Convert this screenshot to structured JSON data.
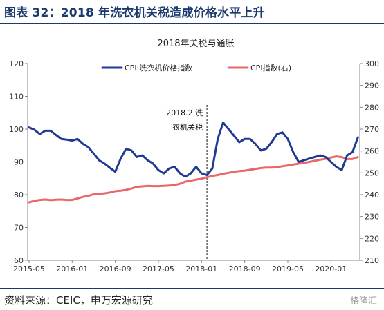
{
  "figure_title": "图表 32：2018 年洗衣机关税造成价格水平上升",
  "source_text": "资料来源：CEIC，申万宏源研究",
  "watermark_text": "格隆汇",
  "colors": {
    "series_1": "#1f3a93",
    "series_2": "#e8686a",
    "text": "#222222",
    "accent": "#1a3a6e"
  },
  "chart_data": {
    "type": "line",
    "title": "2018年关税与通胀",
    "x_tick_labels": [
      "2015-05",
      "2016-01",
      "2016-09",
      "2017-05",
      "2018-01",
      "2018-09",
      "2019-05",
      "2020-01"
    ],
    "ylim_left": [
      60,
      120
    ],
    "yticks_left": [
      60,
      70,
      80,
      90,
      100,
      110,
      120
    ],
    "ylim_right": [
      210,
      300
    ],
    "yticks_right": [
      210,
      220,
      230,
      240,
      250,
      260,
      270,
      280,
      290,
      300
    ],
    "grid": false,
    "legend_position": "top",
    "annotation": {
      "lines": [
        "2018.2 洗",
        "衣机关税"
      ],
      "x": "2018-02"
    },
    "series": [
      {
        "name": "CPI:洗衣机价格指数",
        "axis": "left",
        "color": "#1f3a93",
        "x": [
          "2015-05",
          "2015-06",
          "2015-07",
          "2015-08",
          "2015-09",
          "2015-10",
          "2015-11",
          "2015-12",
          "2016-01",
          "2016-02",
          "2016-03",
          "2016-04",
          "2016-05",
          "2016-06",
          "2016-07",
          "2016-08",
          "2016-09",
          "2016-10",
          "2016-11",
          "2016-12",
          "2017-01",
          "2017-02",
          "2017-03",
          "2017-04",
          "2017-05",
          "2017-06",
          "2017-07",
          "2017-08",
          "2017-09",
          "2017-10",
          "2017-11",
          "2017-12",
          "2018-01",
          "2018-02",
          "2018-03",
          "2018-04",
          "2018-05",
          "2018-06",
          "2018-07",
          "2018-08",
          "2018-09",
          "2018-10",
          "2018-11",
          "2018-12",
          "2019-01",
          "2019-02",
          "2019-03",
          "2019-04",
          "2019-05",
          "2019-06",
          "2019-07",
          "2019-08",
          "2019-09",
          "2019-10",
          "2019-11",
          "2019-12",
          "2020-01",
          "2020-02",
          "2020-03",
          "2020-04",
          "2020-05",
          "2020-06"
        ],
        "values": [
          100.5,
          99.8,
          98.5,
          99.5,
          99.5,
          98.2,
          97.0,
          96.8,
          96.5,
          97.0,
          95.5,
          94.5,
          92.5,
          90.5,
          89.5,
          88.2,
          87.0,
          91.0,
          94.0,
          93.5,
          91.5,
          92.0,
          90.5,
          89.5,
          87.5,
          86.5,
          88.0,
          88.5,
          86.5,
          85.5,
          86.5,
          88.5,
          86.5,
          86.0,
          88.0,
          97.0,
          102.0,
          100.0,
          98.0,
          96.0,
          97.0,
          97.0,
          95.5,
          93.5,
          94.0,
          96.0,
          98.5,
          99.0,
          97.0,
          93.0,
          90.0,
          90.5,
          91.0,
          91.5,
          92.0,
          91.5,
          90.0,
          88.5,
          87.5,
          92.0,
          93.0,
          97.5
        ]
      },
      {
        "name": "CPI指数(右)",
        "axis": "right",
        "color": "#e8686a",
        "x": [
          "2015-05",
          "2015-06",
          "2015-07",
          "2015-08",
          "2015-09",
          "2015-10",
          "2015-11",
          "2015-12",
          "2016-01",
          "2016-02",
          "2016-03",
          "2016-04",
          "2016-05",
          "2016-06",
          "2016-07",
          "2016-08",
          "2016-09",
          "2016-10",
          "2016-11",
          "2016-12",
          "2017-01",
          "2017-02",
          "2017-03",
          "2017-04",
          "2017-05",
          "2017-06",
          "2017-07",
          "2017-08",
          "2017-09",
          "2017-10",
          "2017-11",
          "2017-12",
          "2018-01",
          "2018-02",
          "2018-03",
          "2018-04",
          "2018-05",
          "2018-06",
          "2018-07",
          "2018-08",
          "2018-09",
          "2018-10",
          "2018-11",
          "2018-12",
          "2019-01",
          "2019-02",
          "2019-03",
          "2019-04",
          "2019-05",
          "2019-06",
          "2019-07",
          "2019-08",
          "2019-09",
          "2019-10",
          "2019-11",
          "2019-12",
          "2020-01",
          "2020-02",
          "2020-03",
          "2020-04",
          "2020-05",
          "2020-06"
        ],
        "values": [
          236.5,
          237.2,
          237.6,
          237.8,
          237.5,
          237.7,
          237.8,
          237.6,
          237.6,
          238.3,
          239.0,
          239.5,
          240.2,
          240.4,
          240.6,
          241.0,
          241.6,
          241.8,
          242.2,
          242.8,
          243.6,
          243.8,
          244.0,
          243.9,
          243.9,
          244.0,
          244.2,
          244.4,
          245.0,
          246.0,
          246.4,
          246.9,
          247.3,
          248.0,
          248.6,
          249.0,
          249.6,
          250.0,
          250.5,
          250.8,
          251.0,
          251.4,
          251.8,
          252.2,
          252.4,
          252.4,
          252.6,
          253.0,
          253.4,
          253.8,
          254.2,
          254.6,
          255.0,
          255.5,
          256.0,
          256.4,
          257.0,
          257.5,
          257.2,
          256.3,
          256.3,
          257.2
        ]
      }
    ]
  }
}
